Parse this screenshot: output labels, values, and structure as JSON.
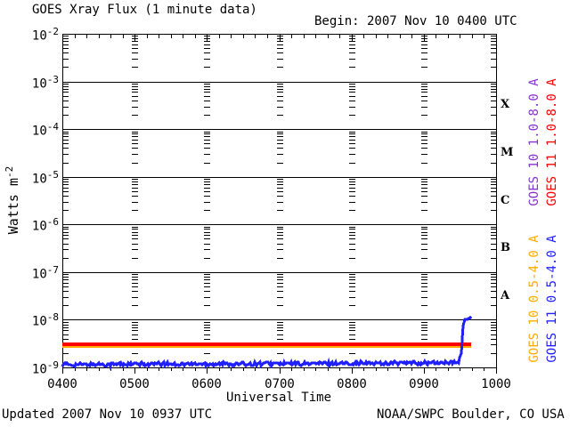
{
  "header": {
    "title": "GOES Xray Flux (1 minute data)",
    "begin": "Begin: 2007 Nov 10 0400 UTC"
  },
  "footer": {
    "updated": "Updated 2007 Nov 10 0937 UTC",
    "source": "NOAA/SWPC Boulder, CO USA"
  },
  "chart_data": {
    "type": "line",
    "title": "GOES Xray Flux (1 minute data)",
    "xlabel": "Universal Time",
    "ylabel": {
      "base": "Watts m",
      "exp": "-2"
    },
    "x_tick_labels": [
      "0400",
      "0500",
      "0600",
      "0700",
      "0800",
      "0900",
      "1000"
    ],
    "x_minutes_range": [
      0,
      360
    ],
    "y_log_range": [
      -9,
      -2
    ],
    "y_tick_base": "10",
    "y_tick_exponents": [
      -2,
      -3,
      -4,
      -5,
      -6,
      -7,
      -8,
      -9
    ],
    "grid": "horizontal decade lines, log minor tick dashes at each hour column",
    "flare_class_labels": [
      {
        "label": "X",
        "decade_top": -3
      },
      {
        "label": "M",
        "decade_top": -4
      },
      {
        "label": "C",
        "decade_top": -5
      },
      {
        "label": "B",
        "decade_top": -6
      },
      {
        "label": "A",
        "decade_top": -7
      }
    ],
    "legend_position": "right, vertical text",
    "legend": [
      {
        "label": "GOES 10 1.0-8.0 A",
        "color": "#8833cc",
        "group": "long"
      },
      {
        "label": "GOES 11 1.0-8.0 A",
        "color": "#ff0000",
        "group": "long"
      },
      {
        "label": "GOES 10 0.5-4.0 A",
        "color": "#ffaa00",
        "group": "short"
      },
      {
        "label": "GOES 11 0.5-4.0 A",
        "color": "#2020ff",
        "group": "short"
      }
    ],
    "series": [
      {
        "name": "GOES 10 1.0-8.0 A",
        "color": "#8833cc",
        "width": 4,
        "noise": 0,
        "points": [
          [
            0,
            3e-09
          ],
          [
            339,
            3e-09
          ]
        ],
        "note": "hidden beneath GOES 11 long channel trace"
      },
      {
        "name": "GOES 10 0.5-4.0 A",
        "color": "#ffaa00",
        "width": 6,
        "noise": 0,
        "points": [
          [
            0,
            2.95e-09
          ],
          [
            339,
            2.95e-09
          ]
        ]
      },
      {
        "name": "GOES 11 1.0-8.0 A",
        "color": "#ff0000",
        "width": 4,
        "noise": 0,
        "points": [
          [
            0,
            3e-09
          ],
          [
            339,
            3e-09
          ]
        ]
      },
      {
        "name": "GOES 11 0.5-4.0 A",
        "color": "#2020ff",
        "width": 3,
        "noise": 0.09,
        "noise_until": 328,
        "points": [
          [
            0,
            1.15e-09
          ],
          [
            329,
            1.25e-09
          ],
          [
            331,
            2e-09
          ],
          [
            332,
            4e-09
          ],
          [
            333,
            7.5e-09
          ],
          [
            334,
            1e-08
          ],
          [
            336,
            1.04e-08
          ],
          [
            338,
            1.08e-08
          ],
          [
            339,
            1.15e-08
          ]
        ]
      }
    ]
  }
}
